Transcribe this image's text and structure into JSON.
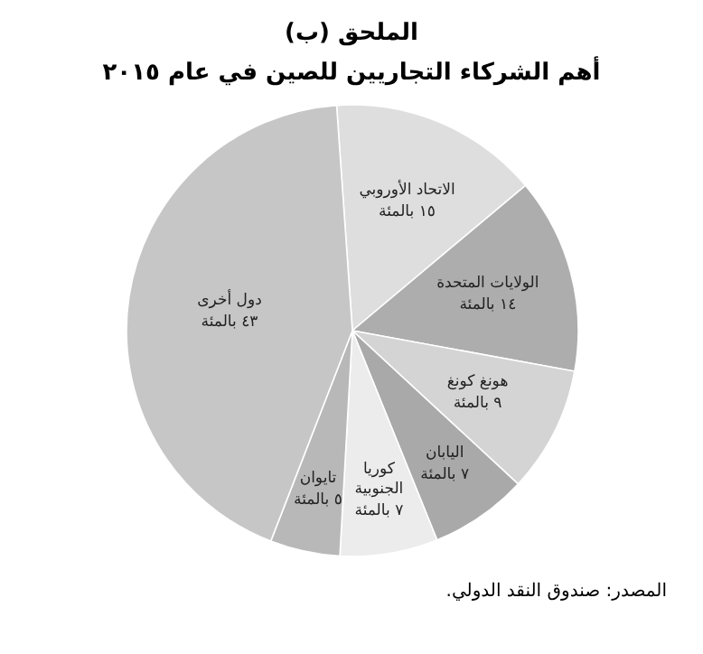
{
  "chart_data": {
    "type": "pie",
    "title": "الملحق (ب)",
    "subtitle": "أهم الشركاء التجاريين للصين في عام ٢٠١٥",
    "categories": [
      "الاتحاد الأوروبي",
      "الولايات المتحدة",
      "هونغ كونغ",
      "اليابان",
      "كوريا الجنوبية",
      "تايوان",
      "دول أخرى"
    ],
    "values": [
      15,
      14,
      9,
      7,
      7,
      5,
      43
    ],
    "value_labels": [
      "١٥ بالمئة",
      "١٤ بالمئة",
      "٩ بالمئة",
      "٧ بالمئة",
      "٧ بالمئة",
      "٥ بالمئة",
      "٤٣ بالمئة"
    ],
    "colors": [
      "#dedede",
      "#adadad",
      "#d4d4d4",
      "#a9a9a9",
      "#ececec",
      "#b8b8b8",
      "#c6c6c6"
    ],
    "annotations": [
      "المصدر: صندوق النقد الدولي."
    ]
  }
}
